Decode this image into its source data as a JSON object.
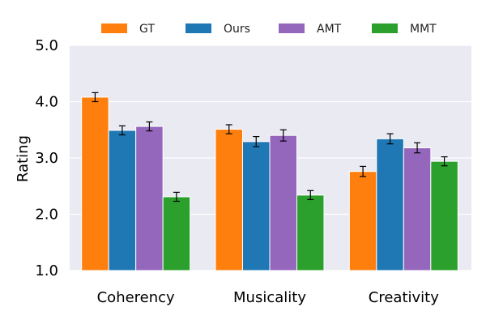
{
  "chart_data": {
    "type": "bar",
    "title": "",
    "xlabel": "",
    "ylabel": "Rating",
    "ylim": [
      1.0,
      5.0
    ],
    "yticks": [
      "1.0",
      "2.0",
      "3.0",
      "4.0",
      "5.0"
    ],
    "categories": [
      "Coherency",
      "Musicality",
      "Creativity"
    ],
    "series": [
      {
        "name": "GT",
        "color": "#ff7f0e",
        "values": [
          4.08,
          3.51,
          2.76
        ],
        "errors": [
          0.08,
          0.08,
          0.09
        ]
      },
      {
        "name": "Ours",
        "color": "#1f77b4",
        "values": [
          3.49,
          3.29,
          3.34
        ],
        "errors": [
          0.08,
          0.09,
          0.09
        ]
      },
      {
        "name": "AMT",
        "color": "#9467bd",
        "values": [
          3.56,
          3.4,
          3.18
        ],
        "errors": [
          0.08,
          0.1,
          0.09
        ]
      },
      {
        "name": "MMT",
        "color": "#2ca02c",
        "values": [
          2.31,
          2.34,
          2.94
        ],
        "errors": [
          0.08,
          0.08,
          0.08
        ]
      }
    ],
    "grid": true,
    "legend_position": "top"
  }
}
